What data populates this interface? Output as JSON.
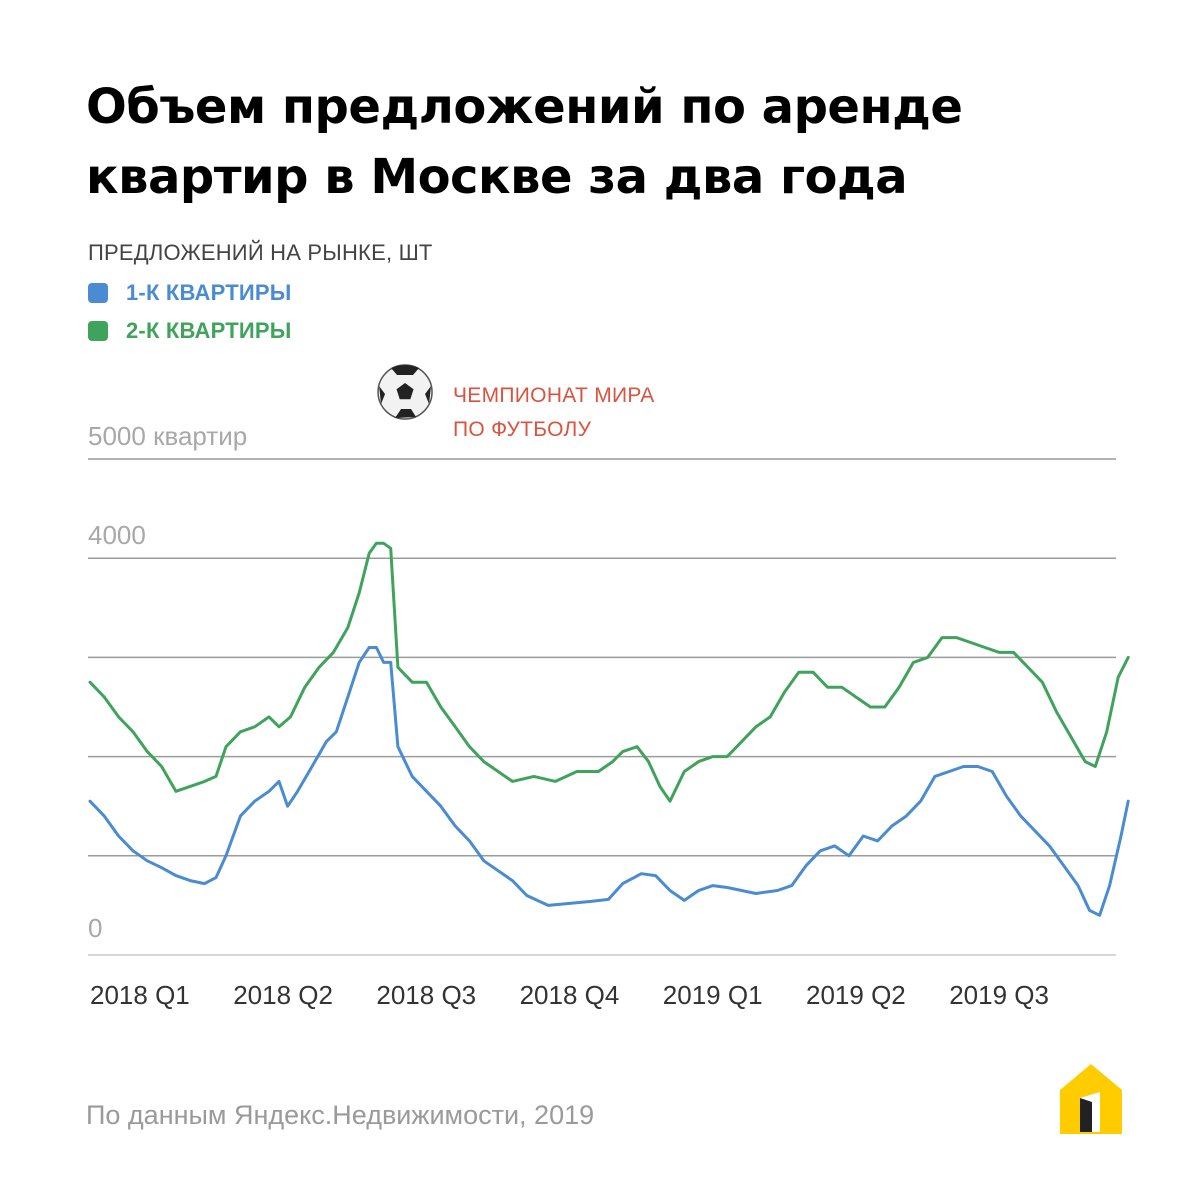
{
  "title_line1": "Объем предложений по аренде",
  "title_line2": "квартир в Москве за два года",
  "subtitle": "ПРЕДЛОЖЕНИЙ НА РЫНКЕ, ШТ",
  "source": "По данным Яндекс.Недвижимости, 2019",
  "logo_icon": "yandex-realty-house-icon",
  "chart_data": {
    "type": "line",
    "title": "Объем предложений по аренде квартир в Москве за два года",
    "ylabel": "ПРЕДЛОЖЕНИЙ НА РЫНКЕ, ШТ",
    "ylim": [
      0,
      5000
    ],
    "grid": true,
    "legend_position": "top-left",
    "y_ticks": [
      {
        "value": 5000,
        "label": "5000 квартир"
      },
      {
        "value": 4000,
        "label": "4000"
      },
      {
        "value": 0,
        "label": "0"
      }
    ],
    "y_gridlines": [
      1000,
      2000,
      3000,
      4000,
      5000
    ],
    "x_range": [
      0,
      7.3
    ],
    "x_ticks": [
      {
        "pos": 0,
        "label": "2018 Q1"
      },
      {
        "pos": 1,
        "label": "2018 Q2"
      },
      {
        "pos": 2,
        "label": "2018 Q3"
      },
      {
        "pos": 3,
        "label": "2018 Q4"
      },
      {
        "pos": 4,
        "label": "2019 Q1"
      },
      {
        "pos": 5,
        "label": "2019 Q2"
      },
      {
        "pos": 6,
        "label": "2019 Q3"
      }
    ],
    "annotation": {
      "line1": "ЧЕМПИОНАТ МИРА",
      "line2": "ПО ФУТБОЛУ",
      "icon": "soccer-ball-icon",
      "x": 2.2
    },
    "series": [
      {
        "name": "1-К КВАРТИРЫ",
        "color": "#4a8bd1",
        "points": [
          [
            0.0,
            1550
          ],
          [
            0.1,
            1400
          ],
          [
            0.2,
            1200
          ],
          [
            0.3,
            1050
          ],
          [
            0.4,
            950
          ],
          [
            0.5,
            880
          ],
          [
            0.6,
            800
          ],
          [
            0.7,
            750
          ],
          [
            0.8,
            720
          ],
          [
            0.88,
            780
          ],
          [
            0.95,
            1000
          ],
          [
            1.05,
            1400
          ],
          [
            1.15,
            1550
          ],
          [
            1.25,
            1650
          ],
          [
            1.32,
            1750
          ],
          [
            1.38,
            1500
          ],
          [
            1.45,
            1650
          ],
          [
            1.55,
            1900
          ],
          [
            1.65,
            2150
          ],
          [
            1.72,
            2250
          ],
          [
            1.8,
            2600
          ],
          [
            1.88,
            2950
          ],
          [
            1.95,
            3100
          ],
          [
            2.0,
            3100
          ],
          [
            2.05,
            2950
          ],
          [
            2.1,
            2950
          ],
          [
            2.15,
            2100
          ],
          [
            2.25,
            1800
          ],
          [
            2.35,
            1650
          ],
          [
            2.45,
            1500
          ],
          [
            2.55,
            1300
          ],
          [
            2.65,
            1150
          ],
          [
            2.75,
            950
          ],
          [
            2.85,
            850
          ],
          [
            2.95,
            750
          ],
          [
            3.05,
            600
          ],
          [
            3.2,
            500
          ],
          [
            3.35,
            520
          ],
          [
            3.5,
            540
          ],
          [
            3.62,
            560
          ],
          [
            3.72,
            720
          ],
          [
            3.85,
            820
          ],
          [
            3.95,
            800
          ],
          [
            4.05,
            650
          ],
          [
            4.15,
            550
          ],
          [
            4.25,
            650
          ],
          [
            4.35,
            700
          ],
          [
            4.45,
            680
          ],
          [
            4.55,
            650
          ],
          [
            4.65,
            620
          ],
          [
            4.8,
            650
          ],
          [
            4.9,
            700
          ],
          [
            5.0,
            900
          ],
          [
            5.1,
            1050
          ],
          [
            5.2,
            1100
          ],
          [
            5.3,
            1000
          ],
          [
            5.4,
            1200
          ],
          [
            5.5,
            1150
          ],
          [
            5.6,
            1300
          ],
          [
            5.7,
            1400
          ],
          [
            5.8,
            1550
          ],
          [
            5.9,
            1800
          ],
          [
            6.0,
            1850
          ],
          [
            6.1,
            1900
          ],
          [
            6.2,
            1900
          ],
          [
            6.3,
            1850
          ],
          [
            6.4,
            1600
          ],
          [
            6.5,
            1400
          ],
          [
            6.6,
            1250
          ],
          [
            6.7,
            1100
          ],
          [
            6.8,
            900
          ],
          [
            6.9,
            700
          ],
          [
            6.98,
            450
          ],
          [
            7.05,
            400
          ],
          [
            7.12,
            700
          ],
          [
            7.2,
            1200
          ],
          [
            7.25,
            1550
          ]
        ]
      },
      {
        "name": "2-К КВАРТИРЫ",
        "color": "#3fa35c",
        "points": [
          [
            0.0,
            2750
          ],
          [
            0.1,
            2600
          ],
          [
            0.2,
            2400
          ],
          [
            0.3,
            2250
          ],
          [
            0.4,
            2050
          ],
          [
            0.5,
            1900
          ],
          [
            0.6,
            1650
          ],
          [
            0.7,
            1700
          ],
          [
            0.8,
            1750
          ],
          [
            0.88,
            1800
          ],
          [
            0.95,
            2100
          ],
          [
            1.05,
            2250
          ],
          [
            1.15,
            2300
          ],
          [
            1.25,
            2400
          ],
          [
            1.32,
            2300
          ],
          [
            1.4,
            2400
          ],
          [
            1.5,
            2700
          ],
          [
            1.6,
            2900
          ],
          [
            1.7,
            3050
          ],
          [
            1.8,
            3300
          ],
          [
            1.88,
            3650
          ],
          [
            1.95,
            4050
          ],
          [
            2.0,
            4150
          ],
          [
            2.05,
            4150
          ],
          [
            2.1,
            4100
          ],
          [
            2.15,
            2900
          ],
          [
            2.25,
            2750
          ],
          [
            2.35,
            2750
          ],
          [
            2.45,
            2500
          ],
          [
            2.55,
            2300
          ],
          [
            2.65,
            2100
          ],
          [
            2.75,
            1950
          ],
          [
            2.85,
            1850
          ],
          [
            2.95,
            1750
          ],
          [
            3.1,
            1800
          ],
          [
            3.25,
            1750
          ],
          [
            3.4,
            1850
          ],
          [
            3.55,
            1850
          ],
          [
            3.65,
            1950
          ],
          [
            3.72,
            2050
          ],
          [
            3.82,
            2100
          ],
          [
            3.9,
            1950
          ],
          [
            3.98,
            1700
          ],
          [
            4.05,
            1550
          ],
          [
            4.15,
            1850
          ],
          [
            4.25,
            1950
          ],
          [
            4.35,
            2000
          ],
          [
            4.45,
            2000
          ],
          [
            4.55,
            2150
          ],
          [
            4.65,
            2300
          ],
          [
            4.75,
            2400
          ],
          [
            4.85,
            2650
          ],
          [
            4.95,
            2850
          ],
          [
            5.05,
            2850
          ],
          [
            5.15,
            2700
          ],
          [
            5.25,
            2700
          ],
          [
            5.35,
            2600
          ],
          [
            5.45,
            2500
          ],
          [
            5.55,
            2500
          ],
          [
            5.65,
            2700
          ],
          [
            5.75,
            2950
          ],
          [
            5.85,
            3000
          ],
          [
            5.95,
            3200
          ],
          [
            6.05,
            3200
          ],
          [
            6.15,
            3150
          ],
          [
            6.25,
            3100
          ],
          [
            6.35,
            3050
          ],
          [
            6.45,
            3050
          ],
          [
            6.55,
            2900
          ],
          [
            6.65,
            2750
          ],
          [
            6.75,
            2450
          ],
          [
            6.85,
            2200
          ],
          [
            6.95,
            1950
          ],
          [
            7.02,
            1900
          ],
          [
            7.1,
            2250
          ],
          [
            7.18,
            2800
          ],
          [
            7.25,
            3000
          ]
        ]
      }
    ]
  }
}
